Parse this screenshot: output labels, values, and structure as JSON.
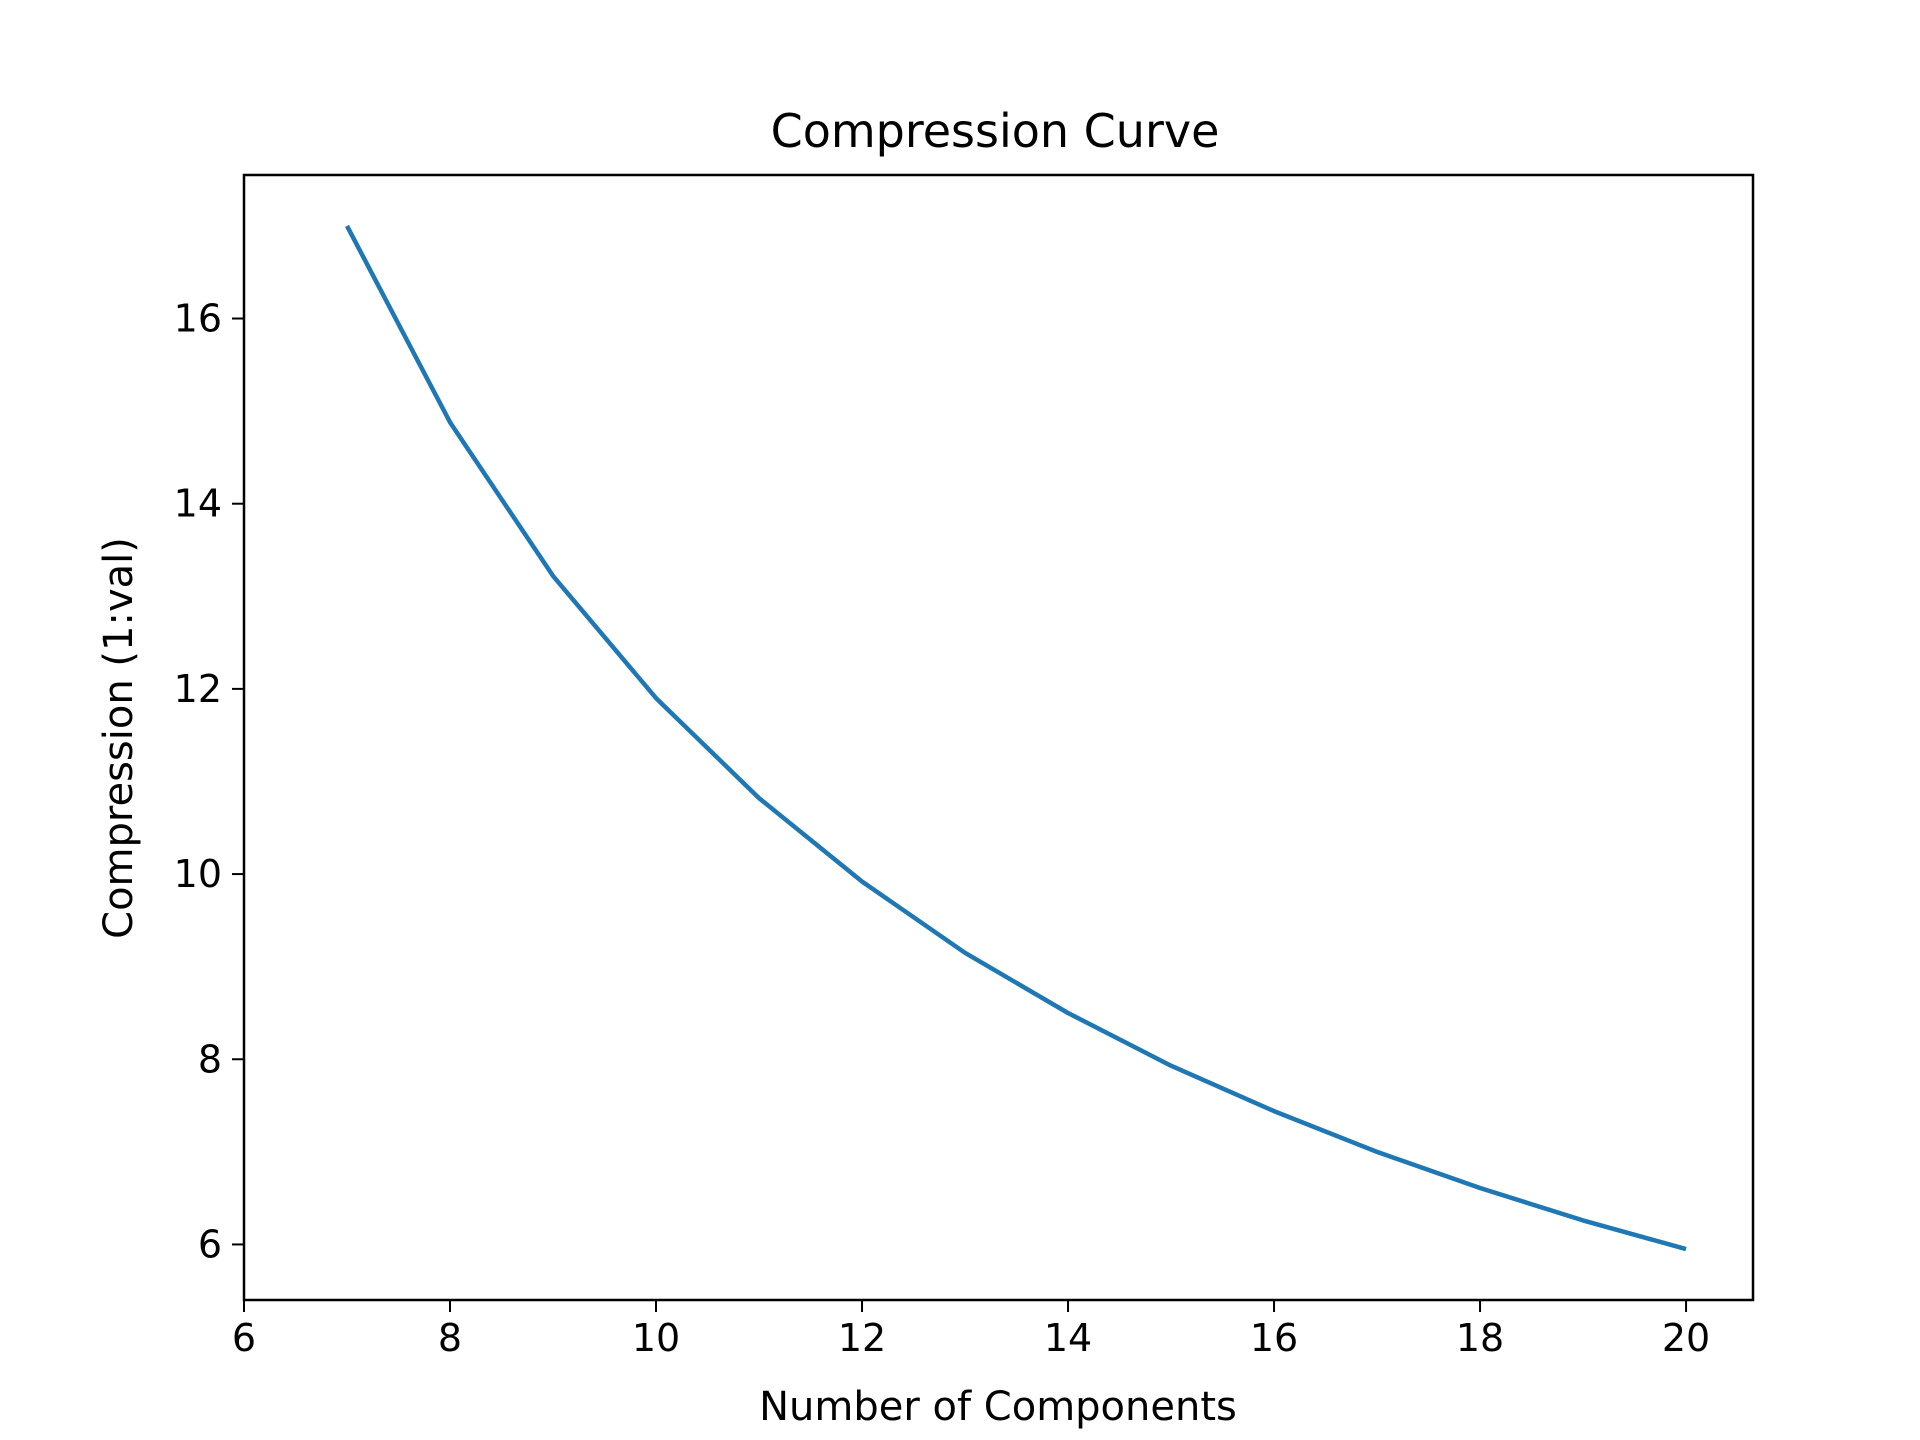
{
  "chart_data": {
    "type": "line",
    "title": "Compression Curve",
    "xlabel": "Number of Components",
    "ylabel": "Compression (1:val)",
    "x_ticks": [
      6,
      8,
      10,
      12,
      14,
      16,
      18,
      20
    ],
    "y_ticks": [
      6,
      8,
      10,
      12,
      14,
      16
    ],
    "xlim": [
      6,
      20.65
    ],
    "ylim": [
      5.4,
      17.55
    ],
    "grid": false,
    "legend": "none",
    "series": [
      {
        "color": "#1f77b4",
        "x": [
          7,
          8,
          9,
          10,
          11,
          12,
          13,
          14,
          15,
          16,
          17,
          18,
          19,
          20
        ],
        "y": [
          17.0,
          14.88,
          13.22,
          11.9,
          10.82,
          9.92,
          9.15,
          8.5,
          7.93,
          7.44,
          7.0,
          6.61,
          6.26,
          5.95
        ]
      }
    ]
  }
}
